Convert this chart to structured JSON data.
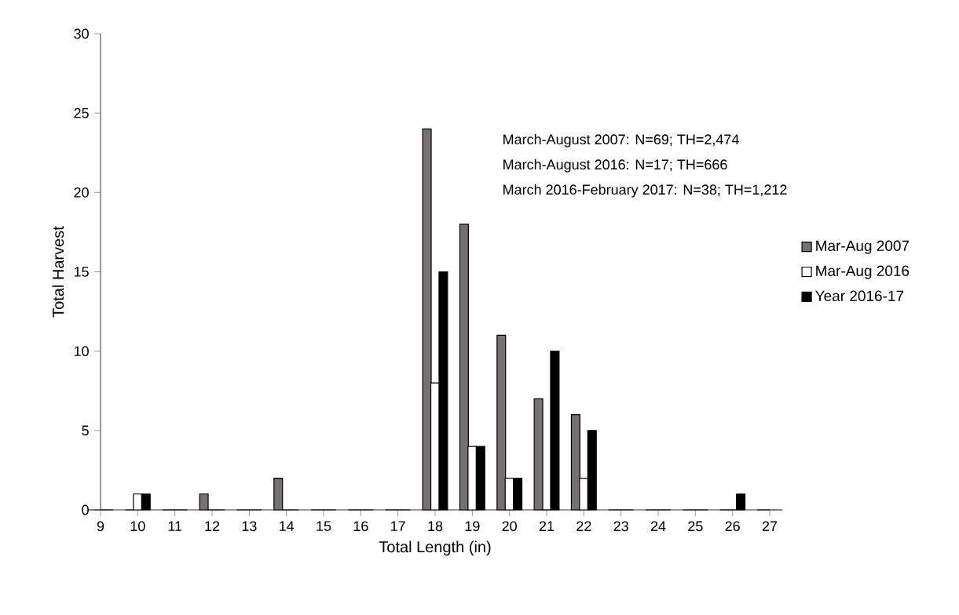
{
  "chart_data": {
    "type": "bar",
    "xlabel": "Total Length (in)",
    "ylabel": "Total Harvest",
    "categories": [
      "9",
      "10",
      "11",
      "12",
      "13",
      "14",
      "15",
      "16",
      "17",
      "18",
      "19",
      "20",
      "21",
      "22",
      "23",
      "24",
      "25",
      "26",
      "27"
    ],
    "series": [
      {
        "name": "Mar-Aug 2007",
        "color": "#767171",
        "values": [
          0,
          0,
          0,
          1,
          0,
          2,
          0,
          0,
          0,
          24,
          18,
          11,
          7,
          6,
          0,
          0,
          0,
          0,
          0
        ]
      },
      {
        "name": "Mar-Aug 2016",
        "color": "#ffffff",
        "values": [
          0,
          1,
          0,
          0,
          0,
          0,
          0,
          0,
          0,
          8,
          4,
          2,
          0,
          2,
          0,
          0,
          0,
          0,
          0
        ]
      },
      {
        "name": "Year 2016-17",
        "color": "#000000",
        "values": [
          0,
          1,
          0,
          0,
          0,
          0,
          0,
          0,
          0,
          15,
          4,
          2,
          10,
          5,
          0,
          0,
          0,
          1,
          0
        ]
      }
    ],
    "ylim": [
      0,
      30
    ],
    "yticks": [
      0,
      5,
      10,
      15,
      20,
      25,
      30
    ],
    "legend": "right",
    "annotations": [
      "March-August 2007: N=69; TH=2,474",
      "March-August 2016: N=17; TH=666",
      "March 2016-February 2017: N=38; TH=1,212"
    ]
  }
}
